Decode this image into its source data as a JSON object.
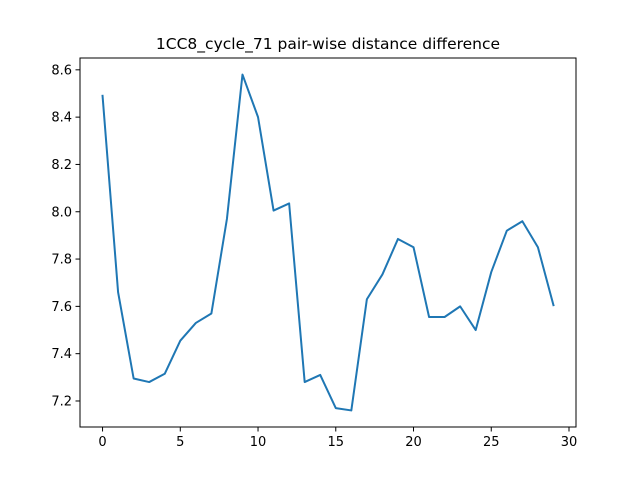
{
  "chart_data": {
    "type": "line",
    "title": "1CC8_cycle_71 pair-wise distance difference",
    "xlabel": "",
    "ylabel": "",
    "xlim": [
      -1.45,
      30.45
    ],
    "ylim": [
      7.09,
      8.65
    ],
    "xticks": [
      0,
      5,
      10,
      15,
      20,
      25,
      30
    ],
    "yticks": [
      7.2,
      7.4,
      7.6,
      7.8,
      8.0,
      8.2,
      8.4,
      8.6
    ],
    "xtick_labels": [
      "0",
      "5",
      "10",
      "15",
      "20",
      "25",
      "30"
    ],
    "ytick_labels": [
      "7.2",
      "7.4",
      "7.6",
      "7.8",
      "8.0",
      "8.2",
      "8.4",
      "8.6"
    ],
    "grid": false,
    "series": [
      {
        "name": "pair-wise distance difference",
        "color": "#1f77b4",
        "x": [
          0,
          1,
          2,
          3,
          4,
          5,
          6,
          7,
          8,
          9,
          10,
          11,
          12,
          13,
          14,
          15,
          16,
          17,
          18,
          19,
          20,
          21,
          22,
          23,
          24,
          25,
          26,
          27,
          28,
          29
        ],
        "values": [
          8.49,
          7.66,
          7.295,
          7.28,
          7.315,
          7.455,
          7.53,
          7.57,
          7.97,
          8.58,
          8.4,
          8.005,
          8.035,
          7.28,
          7.31,
          7.17,
          7.16,
          7.63,
          7.735,
          7.885,
          7.85,
          7.555,
          7.555,
          7.6,
          7.5,
          7.745,
          7.92,
          7.96,
          7.85,
          7.605
        ]
      }
    ]
  }
}
